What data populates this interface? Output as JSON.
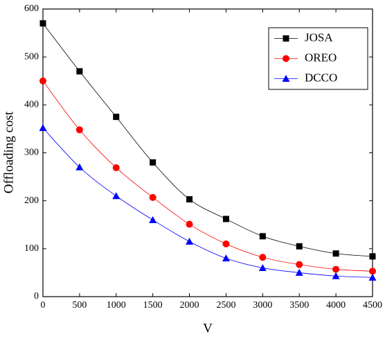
{
  "chart_data": {
    "type": "line",
    "x_label": "V",
    "y_label": "Offloading cost",
    "x": [
      0,
      500,
      1000,
      1500,
      2000,
      2500,
      3000,
      3500,
      4000,
      4500
    ],
    "series": [
      {
        "name": "JOSA",
        "color": "#000000",
        "marker": "square",
        "values": [
          570,
          470,
          375,
          280,
          203,
          162,
          126,
          105,
          90,
          84
        ]
      },
      {
        "name": "OREO",
        "color": "#ff0000",
        "marker": "circle",
        "values": [
          450,
          348,
          269,
          207,
          151,
          110,
          82,
          67,
          57,
          53
        ]
      },
      {
        "name": "DCCO",
        "color": "#0000ff",
        "marker": "triangle",
        "values": [
          352,
          270,
          210,
          160,
          115,
          80,
          60,
          50,
          43,
          40
        ]
      }
    ],
    "xlim": [
      0,
      4500
    ],
    "xticks": [
      0,
      500,
      1000,
      1500,
      2000,
      2500,
      3000,
      3500,
      4000,
      4500
    ],
    "ylim": [
      0,
      600
    ],
    "yticks": [
      0,
      100,
      200,
      300,
      400,
      500,
      600
    ],
    "legend": "upper right"
  }
}
